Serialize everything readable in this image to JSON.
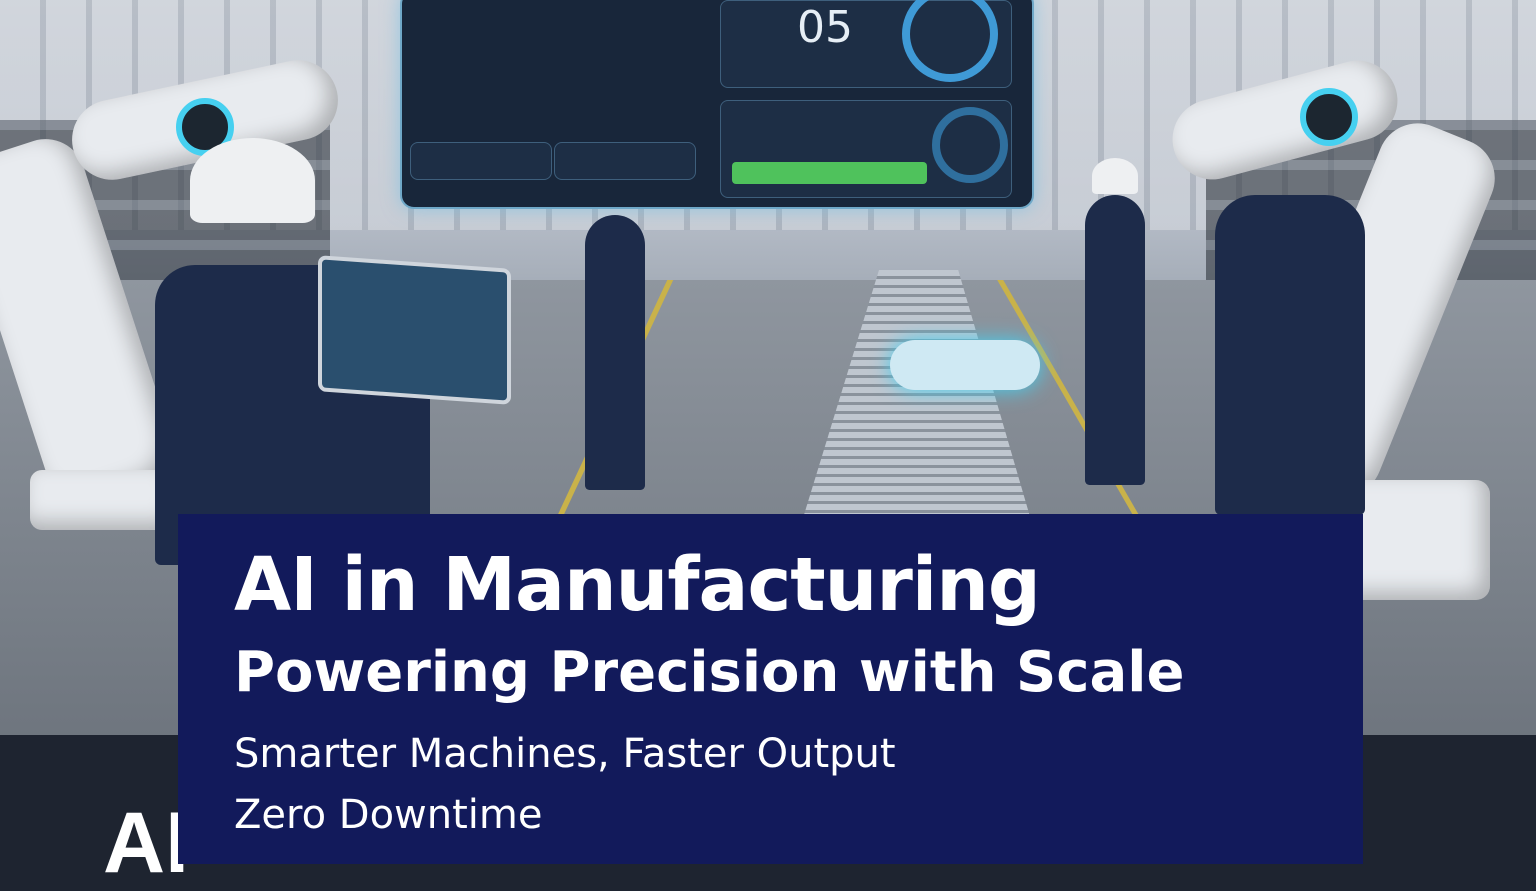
{
  "banner": {
    "title": "AI in Manufacturing",
    "subtitle": "Powering Precision with Scale",
    "tagline_1": "Smarter Machines, Faster Output",
    "tagline_2": "Zero Downtime",
    "partial_left_text": "AI"
  },
  "photo": {
    "dashboard_number": "05"
  },
  "colors": {
    "panel": "#121a5b",
    "band": "#1e2430",
    "accent_glow": "#46d0f0",
    "status_green": "#4fc25c"
  }
}
